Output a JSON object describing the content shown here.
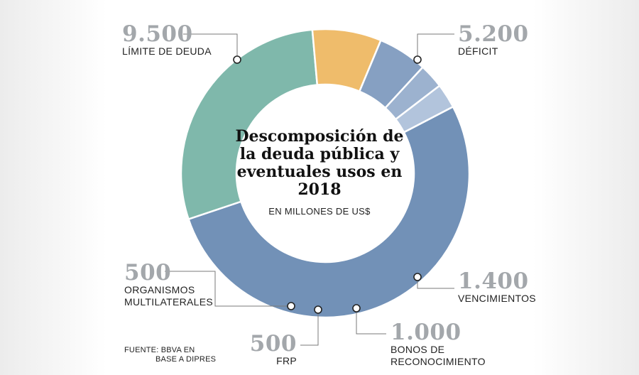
{
  "chart_data": {
    "type": "pie",
    "variant": "donut",
    "title": "Descomposición de la deuda pública y eventuales usos en 2018",
    "subtitle": "EN MILLONES DE US$",
    "unit": "millones de US$",
    "slices": [
      {
        "label": "LÍMITE DE DEUDA",
        "value": 9500,
        "value_text": "9.500",
        "color": "#7291b7"
      },
      {
        "label": "DÉFICIT",
        "value": 5200,
        "value_text": "5.200",
        "color": "#7fb8ab"
      },
      {
        "label": "VENCIMIENTOS",
        "value": 1400,
        "value_text": "1.400",
        "color": "#efbc6b"
      },
      {
        "label": "BONOS DE RECONOCIMIENTO",
        "value": 1000,
        "value_text": "1.000",
        "color": "#86a0c2"
      },
      {
        "label": "FRP",
        "value": 500,
        "value_text": "500",
        "color": "#9cb2cf"
      },
      {
        "label": "ORGANISMOS MULTILATERALES",
        "value": 500,
        "value_text": "500",
        "color": "#b2c4dc"
      }
    ],
    "source": {
      "line1": "FUENTE: BBVA EN",
      "line2": "BASE A DIPRES"
    }
  }
}
